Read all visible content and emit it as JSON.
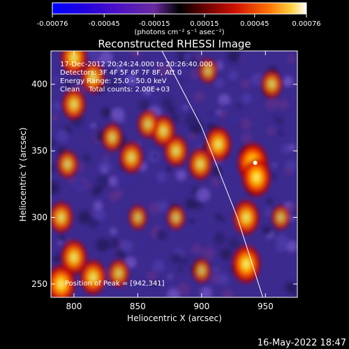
{
  "chart_data": {
    "type": "heatmap",
    "title": "Reconstructed RHESSI Image",
    "xlabel": "Heliocentric X (arcsec)",
    "ylabel": "Heliocentric Y (arcsec)",
    "xlim": [
      782,
      975
    ],
    "ylim": [
      240,
      425
    ],
    "x_ticks": [
      800,
      850,
      900,
      950
    ],
    "y_ticks": [
      250,
      300,
      350,
      400
    ],
    "colorbar": {
      "ticks": [
        -0.00076,
        -0.00045,
        -0.00015,
        0.00015,
        0.00045,
        0.00076
      ],
      "tick_labels": [
        "-0.00076",
        "-0.00045",
        "-0.00015",
        "0.00015",
        "0.00045",
        "0.00076"
      ],
      "units": "(photons cm⁻² s⁻¹ asec⁻²)",
      "range": [
        -0.00076,
        0.00076
      ]
    },
    "annotations": [
      "17-Dec-2012 20:24:24.000 to 20:26:40.000",
      "Detectors: 3F 4F 5F 6F 7F 8F, Att 0",
      "Energy Range: 25.0 - 50.0 keV",
      "Clean    Total counts: 2.00E+03"
    ],
    "peak_label": "Position of Peak = [942,341]",
    "peak": [
      942,
      341
    ],
    "limb_curve": [
      [
        869,
        425
      ],
      [
        900,
        368
      ],
      [
        928,
        300
      ],
      [
        948,
        240
      ]
    ],
    "bright_regions": [
      {
        "x": 940,
        "y": 341,
        "level": 0.00076
      },
      {
        "x": 943,
        "y": 330,
        "level": 0.0007
      },
      {
        "x": 935,
        "y": 300,
        "level": 0.0006
      },
      {
        "x": 935,
        "y": 265,
        "level": 0.0007
      },
      {
        "x": 913,
        "y": 355,
        "level": 0.0006
      },
      {
        "x": 899,
        "y": 340,
        "level": 0.0005
      },
      {
        "x": 880,
        "y": 350,
        "level": 0.0005
      },
      {
        "x": 870,
        "y": 365,
        "level": 0.0005
      },
      {
        "x": 858,
        "y": 370,
        "level": 0.0004
      },
      {
        "x": 845,
        "y": 345,
        "level": 0.0005
      },
      {
        "x": 830,
        "y": 360,
        "level": 0.0004
      },
      {
        "x": 800,
        "y": 420,
        "level": 0.0006
      },
      {
        "x": 815,
        "y": 405,
        "level": 0.0005
      },
      {
        "x": 800,
        "y": 385,
        "level": 0.0005
      },
      {
        "x": 795,
        "y": 340,
        "level": 0.0004
      },
      {
        "x": 790,
        "y": 300,
        "level": 0.0005
      },
      {
        "x": 800,
        "y": 270,
        "level": 0.0006
      },
      {
        "x": 790,
        "y": 250,
        "level": 0.0007
      },
      {
        "x": 815,
        "y": 255,
        "level": 0.0006
      },
      {
        "x": 835,
        "y": 258,
        "level": 0.0004
      },
      {
        "x": 955,
        "y": 400,
        "level": 0.0004
      },
      {
        "x": 962,
        "y": 300,
        "level": 0.0003
      },
      {
        "x": 900,
        "y": 260,
        "level": 0.0003
      },
      {
        "x": 880,
        "y": 300,
        "level": 0.0003
      },
      {
        "x": 850,
        "y": 300,
        "level": 0.0003
      },
      {
        "x": 905,
        "y": 410,
        "level": 0.0003
      }
    ]
  },
  "timestamp": "16-May-2022 18:47"
}
